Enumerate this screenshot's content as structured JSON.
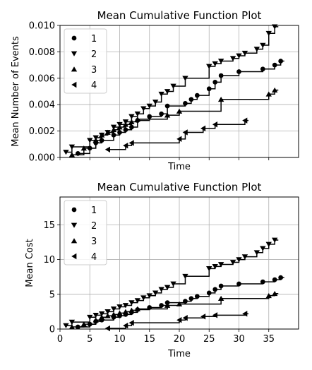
{
  "chart_data": [
    {
      "type": "line",
      "title": "Mean Cumulative Function Plot",
      "xlabel": "Time",
      "ylabel": "Mean Number of Events",
      "xlim": [
        0,
        40
      ],
      "ylim": [
        0,
        0.01
      ],
      "xticks": [
        0,
        5,
        10,
        15,
        20,
        25,
        30,
        35
      ],
      "show_xticklabels": false,
      "yticks": [
        0.0,
        0.002,
        0.004,
        0.006,
        0.008,
        0.01
      ],
      "ytick_labels": [
        "0.000",
        "0.002",
        "0.004",
        "0.006",
        "0.008",
        "0.010"
      ],
      "grid": true,
      "legend": "top-left",
      "series": [
        {
          "name": "1",
          "marker": "circle",
          "color": "#000000",
          "x": [
            3,
            5,
            6,
            7,
            9,
            10,
            11,
            12,
            13,
            15,
            17,
            18,
            21,
            22,
            23,
            25,
            26,
            27,
            30,
            34,
            36,
            37
          ],
          "y": [
            0.0003,
            0.0007,
            0.0011,
            0.0013,
            0.0017,
            0.0019,
            0.0021,
            0.0023,
            0.0028,
            0.0031,
            0.0033,
            0.0039,
            0.0041,
            0.0044,
            0.0047,
            0.0052,
            0.0057,
            0.0062,
            0.0065,
            0.0067,
            0.007,
            0.0073
          ]
        },
        {
          "name": "2",
          "marker": "triangle-down",
          "color": "#000000",
          "x": [
            1,
            2,
            5,
            6,
            7,
            8,
            9,
            10,
            11,
            12,
            13,
            14,
            15,
            16,
            17,
            18,
            19,
            21,
            25,
            26,
            27,
            29,
            30,
            31,
            33,
            34,
            35,
            36
          ],
          "y": [
            0.0004,
            0.0008,
            0.0013,
            0.0015,
            0.0017,
            0.0019,
            0.0023,
            0.0025,
            0.0027,
            0.0031,
            0.0033,
            0.0037,
            0.0039,
            0.0042,
            0.0048,
            0.005,
            0.0054,
            0.006,
            0.0069,
            0.0071,
            0.0073,
            0.0075,
            0.0077,
            0.0079,
            0.0082,
            0.0085,
            0.0094,
            0.0099
          ]
        },
        {
          "name": "3",
          "marker": "triangle-up",
          "color": "#000000",
          "x": [
            2,
            4,
            6,
            7,
            8,
            9,
            10,
            11,
            12,
            13,
            18,
            20,
            27,
            35,
            36
          ],
          "y": [
            0.0002,
            0.0007,
            0.0013,
            0.0017,
            0.0019,
            0.0021,
            0.0023,
            0.0025,
            0.0027,
            0.0029,
            0.0032,
            0.0035,
            0.0044,
            0.0048,
            0.0051
          ]
        },
        {
          "name": "4",
          "marker": "triangle-left",
          "color": "#000000",
          "x": [
            8,
            11,
            12,
            20,
            21,
            24,
            26,
            31
          ],
          "y": [
            0.0006,
            0.0009,
            0.0011,
            0.0014,
            0.0019,
            0.0022,
            0.0025,
            0.0028
          ]
        }
      ]
    },
    {
      "type": "line",
      "title": "Mean Cumulative Function Plot",
      "xlabel": "Time",
      "ylabel": "Mean Cost",
      "xlim": [
        0,
        40
      ],
      "ylim": [
        0,
        19
      ],
      "xticks": [
        0,
        5,
        10,
        15,
        20,
        25,
        30,
        35
      ],
      "show_xticklabels": true,
      "yticks": [
        0,
        5,
        10,
        15
      ],
      "ytick_labels": [
        "0",
        "5",
        "10",
        "15"
      ],
      "grid": true,
      "legend": "top-left",
      "series": [
        {
          "name": "1",
          "marker": "circle",
          "color": "#000000",
          "x": [
            3,
            5,
            6,
            7,
            9,
            10,
            11,
            12,
            13,
            15,
            17,
            18,
            21,
            22,
            23,
            25,
            26,
            27,
            30,
            34,
            36,
            37
          ],
          "y": [
            0.3,
            0.7,
            1.1,
            1.3,
            1.7,
            1.9,
            2.1,
            2.4,
            2.8,
            3.1,
            3.4,
            3.8,
            4.0,
            4.4,
            4.7,
            5.2,
            5.7,
            6.2,
            6.5,
            6.8,
            7.1,
            7.4
          ]
        },
        {
          "name": "2",
          "marker": "triangle-down",
          "color": "#000000",
          "x": [
            1,
            2,
            5,
            6,
            7,
            8,
            9,
            10,
            11,
            12,
            13,
            14,
            15,
            16,
            17,
            18,
            19,
            21,
            25,
            26,
            27,
            29,
            30,
            31,
            33,
            34,
            35,
            36
          ],
          "y": [
            0.5,
            1.0,
            1.7,
            2.0,
            2.2,
            2.5,
            2.9,
            3.2,
            3.4,
            3.8,
            4.1,
            4.5,
            4.8,
            5.2,
            5.7,
            6.0,
            6.5,
            7.6,
            8.7,
            9.0,
            9.3,
            9.6,
            10.0,
            10.4,
            11.0,
            11.6,
            12.2,
            12.8
          ]
        },
        {
          "name": "3",
          "marker": "triangle-up",
          "color": "#000000",
          "x": [
            2,
            4,
            6,
            7,
            8,
            9,
            10,
            11,
            12,
            13,
            18,
            20,
            27,
            35,
            36
          ],
          "y": [
            0.3,
            0.7,
            1.3,
            1.7,
            1.9,
            2.1,
            2.3,
            2.5,
            2.7,
            2.9,
            3.4,
            3.6,
            4.4,
            4.8,
            5.1
          ]
        },
        {
          "name": "4",
          "marker": "triangle-left",
          "color": "#000000",
          "x": [
            8,
            11,
            12,
            20,
            21,
            24,
            26,
            31
          ],
          "y": [
            0.1,
            0.5,
            0.9,
            1.3,
            1.6,
            1.8,
            2.0,
            2.2
          ]
        }
      ]
    }
  ]
}
